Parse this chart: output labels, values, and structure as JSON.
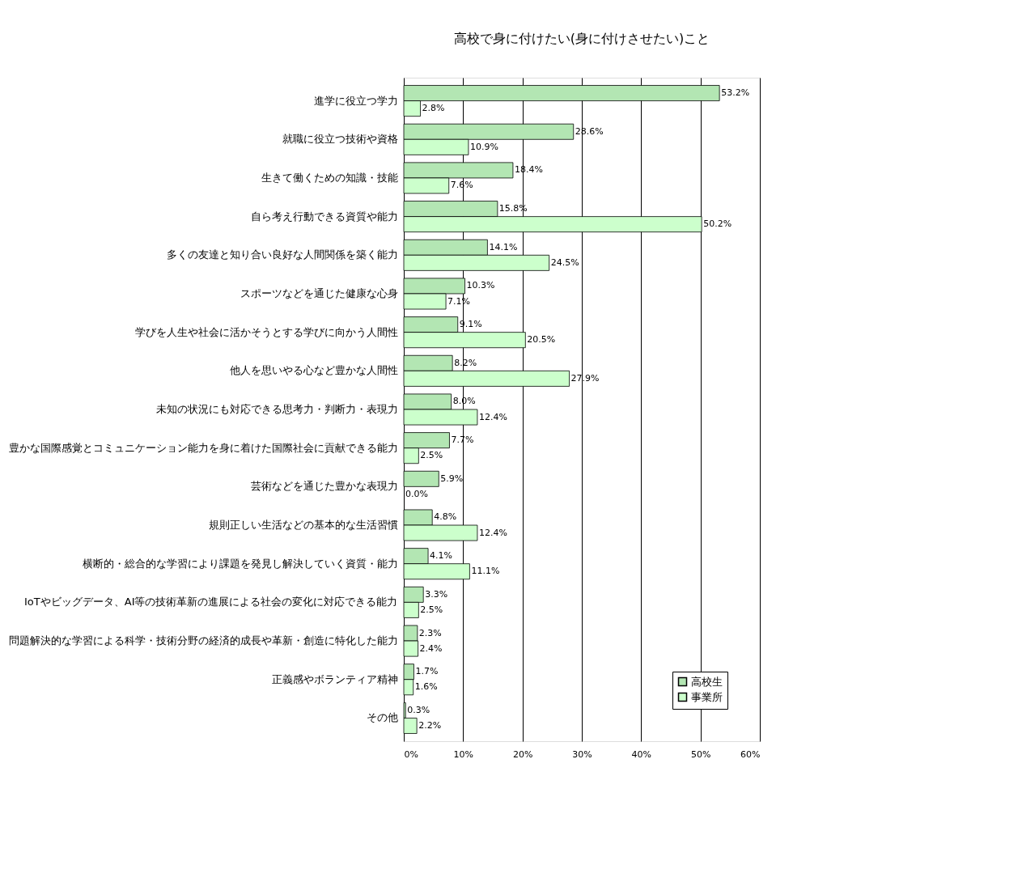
{
  "chart_data": {
    "type": "bar",
    "orientation": "horizontal",
    "title": "高校で身に付けたい(身に付けさせたい)こと",
    "categories": [
      "進学に役立つ学力",
      "就職に役立つ技術や資格",
      "生きて働くための知識・技能",
      "自ら考え行動できる資質や能力",
      "多くの友達と知り合い良好な人間関係を築く能力",
      "スポーツなどを通じた健康な心身",
      "学びを人生や社会に活かそうとする学びに向かう人間性",
      "他人を思いやる心など豊かな人間性",
      "未知の状況にも対応できる思考力・判断力・表現力",
      "豊かな国際感覚とコミュニケーション能力を身に着けた国際社会に貢献できる能力",
      "芸術などを通じた豊かな表現力",
      "規則正しい生活などの基本的な生活習慣",
      "横断的・総合的な学習により課題を発見し解決していく資質・能力",
      "IoTやビッグデータ、AI等の技術革新の進展による社会の変化に対応できる能力",
      "問題解決的な学習による科学・技術分野の経済的成長や革新・創造に特化した能力",
      "正義感やボランティア精神",
      "その他"
    ],
    "series": [
      {
        "name": "高校生",
        "color": "#b3e6b3",
        "values": [
          53.2,
          28.6,
          18.4,
          15.8,
          14.1,
          10.3,
          9.1,
          8.2,
          8.0,
          7.7,
          5.9,
          4.8,
          4.1,
          3.3,
          2.3,
          1.7,
          0.3
        ],
        "value_labels": [
          "53.2%",
          "28.6%",
          "18.4%",
          "15.8%",
          "14.1%",
          "10.3%",
          "9.1%",
          "8.2%",
          "8.0%",
          "7.7%",
          "5.9%",
          "4.8%",
          "4.1%",
          "3.3%",
          "2.3%",
          "1.7%",
          "0.3%"
        ]
      },
      {
        "name": "事業所",
        "color": "#ccffcc",
        "values": [
          2.8,
          10.9,
          7.6,
          50.2,
          24.5,
          7.1,
          20.5,
          27.9,
          12.4,
          2.5,
          0.0,
          12.4,
          11.1,
          2.5,
          2.4,
          1.6,
          2.2
        ],
        "value_labels": [
          "2.8%",
          "10.9%",
          "7.6%",
          "50.2%",
          "24.5%",
          "7.1%",
          "20.5%",
          "27.9%",
          "12.4%",
          "2.5%",
          "0.0%",
          "12.4%",
          "11.1%",
          "2.5%",
          "2.4%",
          "1.6%",
          "2.2%"
        ]
      }
    ],
    "xlim": [
      0,
      60
    ],
    "xticks": [
      {
        "value": 0,
        "label": "0%"
      },
      {
        "value": 10,
        "label": "10%"
      },
      {
        "value": 20,
        "label": "20%"
      },
      {
        "value": 30,
        "label": "30%"
      },
      {
        "value": 40,
        "label": "40%"
      },
      {
        "value": 50,
        "label": "50%"
      },
      {
        "value": 60,
        "label": "60%"
      }
    ],
    "grid": "x",
    "legend": "bottom right"
  }
}
